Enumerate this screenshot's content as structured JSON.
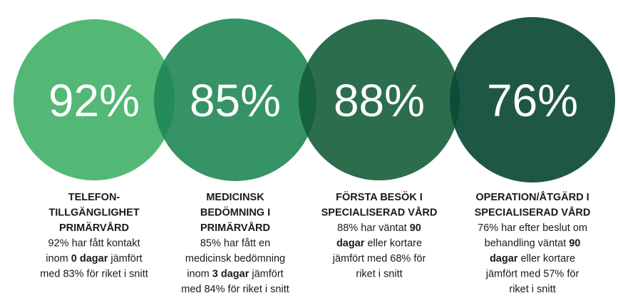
{
  "items": [
    {
      "percent": "92%",
      "title": [
        "TELEFON-",
        "TILLGÄNGLIGHET",
        "PRIMÄRVÅRD"
      ],
      "description": [
        [
          {
            "text": "92% har fått kontakt",
            "bold": false
          }
        ],
        [
          {
            "text": "inom ",
            "bold": false
          },
          {
            "text": "0 dagar",
            "bold": true
          },
          {
            "text": " jämfört",
            "bold": false
          }
        ],
        [
          {
            "text": "med 83% för riket i snitt",
            "bold": false
          }
        ]
      ]
    },
    {
      "percent": "85%",
      "title": [
        "MEDICINSK",
        "BEDÖMNING I",
        "PRIMÄRVÅRD"
      ],
      "description": [
        [
          {
            "text": "85% har fått en",
            "bold": false
          }
        ],
        [
          {
            "text": "medicinsk bedömning",
            "bold": false
          }
        ],
        [
          {
            "text": "inom ",
            "bold": false
          },
          {
            "text": "3 dagar",
            "bold": true
          },
          {
            "text": " jämfört",
            "bold": false
          }
        ],
        [
          {
            "text": "med 84% för riket i snitt",
            "bold": false
          }
        ]
      ]
    },
    {
      "percent": "88%",
      "title": [
        "FÖRSTA BESÖK I",
        "SPECIALISERAD VÅRD"
      ],
      "description": [
        [
          {
            "text": "88% har väntat ",
            "bold": false
          },
          {
            "text": "90",
            "bold": true
          }
        ],
        [
          {
            "text": "dagar",
            "bold": true
          },
          {
            "text": " eller kortare",
            "bold": false
          }
        ],
        [
          {
            "text": "jämfört med 68% för",
            "bold": false
          }
        ],
        [
          {
            "text": "riket i snitt",
            "bold": false
          }
        ]
      ]
    },
    {
      "percent": "76%",
      "title": [
        "OPERATION/ÅTGÄRD I",
        "SPECIALISERAD VÅRD"
      ],
      "description": [
        [
          {
            "text": "76% har efter beslut om",
            "bold": false
          }
        ],
        [
          {
            "text": "behandling väntat ",
            "bold": false
          },
          {
            "text": "90",
            "bold": true
          }
        ],
        [
          {
            "text": "dagar",
            "bold": true
          },
          {
            "text": " eller kortare",
            "bold": false
          }
        ],
        [
          {
            "text": "jämfört med 57% för",
            "bold": false
          }
        ],
        [
          {
            "text": "riket i snitt",
            "bold": false
          }
        ]
      ]
    }
  ]
}
